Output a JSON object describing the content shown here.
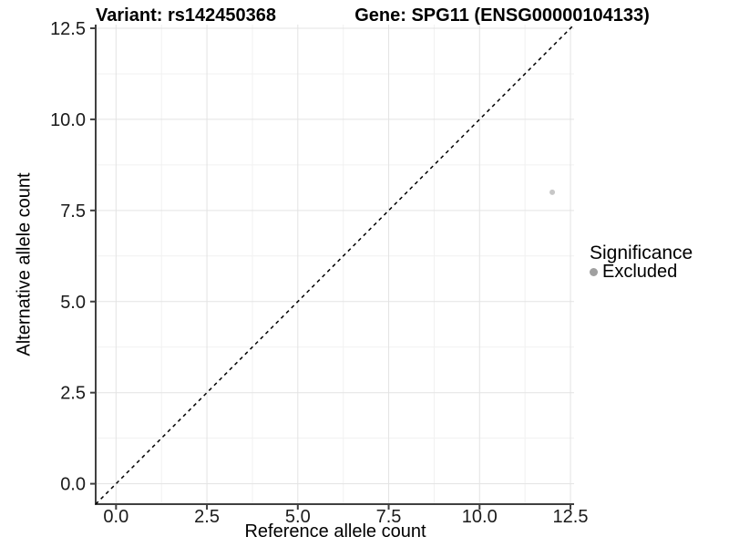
{
  "title": {
    "variant": "Variant: rs142450368",
    "gene": "Gene: SPG11 (ENSG00000104133)"
  },
  "axes": {
    "x": {
      "label": "Reference allele count",
      "ticks": [
        0,
        2.5,
        5,
        7.5,
        10,
        12.5
      ],
      "tick_labels": [
        "0.0",
        "2.5",
        "5.0",
        "7.5",
        "10.0",
        "12.5"
      ],
      "minor_ticks": [
        1.25,
        3.75,
        6.25,
        8.75,
        11.25
      ]
    },
    "y": {
      "label": "Alternative allele count",
      "ticks": [
        0,
        2.5,
        5,
        7.5,
        10,
        12.5
      ],
      "tick_labels": [
        "0.0",
        "2.5",
        "5.0",
        "7.5",
        "10.0",
        "12.5"
      ],
      "minor_ticks": [
        1.25,
        3.75,
        6.25,
        8.75,
        11.25
      ]
    }
  },
  "legend": {
    "title": "Significance",
    "items": [
      {
        "label": "Excluded",
        "color": "#a0a0a0"
      }
    ]
  },
  "chart_data": {
    "type": "scatter",
    "title": "Variant: rs142450368 — Gene: SPG11 (ENSG00000104133)",
    "xlabel": "Reference allele count",
    "ylabel": "Alternative allele count",
    "xlim": [
      -0.56,
      12.6
    ],
    "ylim": [
      -0.56,
      12.6
    ],
    "grid": true,
    "legend_position": "right",
    "series": [
      {
        "name": "Excluded",
        "color": "#c7c7c7",
        "point_radius": 3,
        "points": [
          {
            "x": 12,
            "y": 8
          }
        ]
      }
    ],
    "reference_line": {
      "type": "identity",
      "slope": 1,
      "intercept": 0,
      "linetype": "dashed",
      "color": "#000000"
    }
  },
  "style": {
    "background": "#ffffff",
    "grid_major": "#e3e3e3",
    "grid_minor": "#f1f1f1",
    "axis_line": "#404040",
    "tick_text": "#1a1a1a",
    "text": "#000000"
  }
}
